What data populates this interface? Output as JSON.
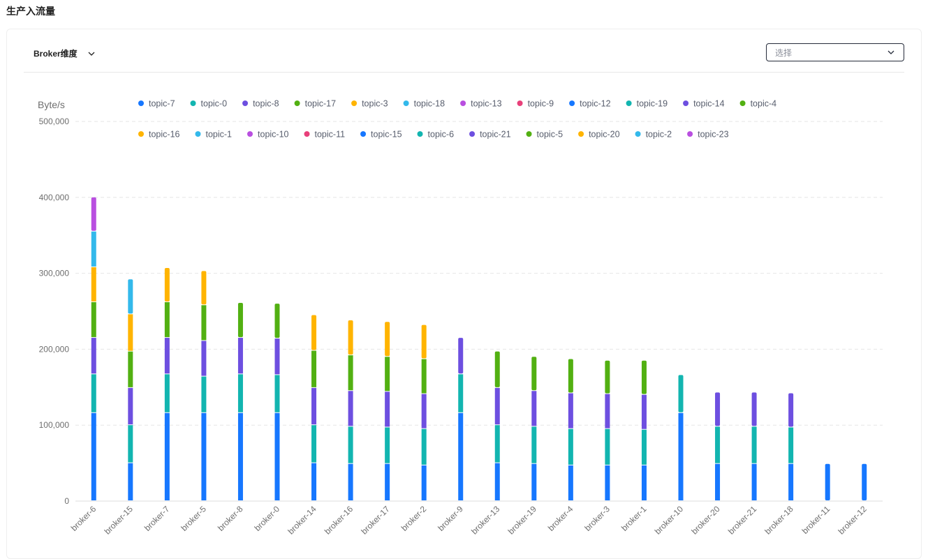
{
  "page": {
    "title": "生产入流量",
    "dimension_label": "Broker维度",
    "select_placeholder": "选择"
  },
  "colors": {
    "palette": [
      "#1677ff",
      "#12b5b0",
      "#6d4fe0",
      "#52b012",
      "#ffb400",
      "#33b9eb",
      "#b94fe0",
      "#e8407a"
    ]
  },
  "chart_data": {
    "type": "bar",
    "stacked": true,
    "ylabel": "Byte/s",
    "ylim": [
      0,
      500000
    ],
    "yticks": [
      0,
      100000,
      200000,
      300000,
      400000,
      500000
    ],
    "ytick_labels": [
      "0",
      "100,000",
      "200,000",
      "300,000",
      "400,000",
      "500,000"
    ],
    "grid": true,
    "legend_position": "top",
    "categories": [
      "broker-6",
      "broker-15",
      "broker-7",
      "broker-5",
      "broker-8",
      "broker-0",
      "broker-14",
      "broker-16",
      "broker-17",
      "broker-2",
      "broker-9",
      "broker-13",
      "broker-19",
      "broker-4",
      "broker-3",
      "broker-1",
      "broker-10",
      "broker-20",
      "broker-21",
      "broker-18",
      "broker-11",
      "broker-12"
    ],
    "legend": [
      "topic-7",
      "topic-0",
      "topic-8",
      "topic-17",
      "topic-3",
      "topic-18",
      "topic-13",
      "topic-9",
      "topic-12",
      "topic-19",
      "topic-14",
      "topic-4",
      "topic-16",
      "topic-1",
      "topic-10",
      "topic-11",
      "topic-15",
      "topic-6",
      "topic-21",
      "topic-5",
      "topic-20",
      "topic-2",
      "topic-23"
    ],
    "stacks": [
      [
        116000,
        51000,
        48000,
        47000,
        46000,
        47000,
        45000
      ],
      [
        50000,
        50000,
        49000,
        48000,
        49000,
        46000
      ],
      [
        116000,
        51000,
        48000,
        47000,
        45000
      ],
      [
        116000,
        48000,
        47000,
        47000,
        45000
      ],
      [
        116000,
        51000,
        48000,
        46000
      ],
      [
        116000,
        50000,
        48000,
        46000
      ],
      [
        50000,
        50000,
        49000,
        49000,
        47000
      ],
      [
        49000,
        49000,
        47000,
        47000,
        46000
      ],
      [
        49000,
        48000,
        47000,
        46000,
        46000
      ],
      [
        47000,
        48000,
        46000,
        46000,
        45000
      ],
      [
        116000,
        51000,
        48000
      ],
      [
        50000,
        50000,
        49000,
        48000
      ],
      [
        49000,
        49000,
        47000,
        45000
      ],
      [
        47000,
        48000,
        47000,
        45000
      ],
      [
        47000,
        48000,
        46000,
        44000
      ],
      [
        47000,
        47000,
        46000,
        45000
      ],
      [
        116000,
        50000
      ],
      [
        49000,
        49000,
        45000
      ],
      [
        49000,
        49000,
        45000
      ],
      [
        49000,
        48000,
        45000
      ],
      [
        49000
      ],
      [
        49000
      ]
    ]
  }
}
